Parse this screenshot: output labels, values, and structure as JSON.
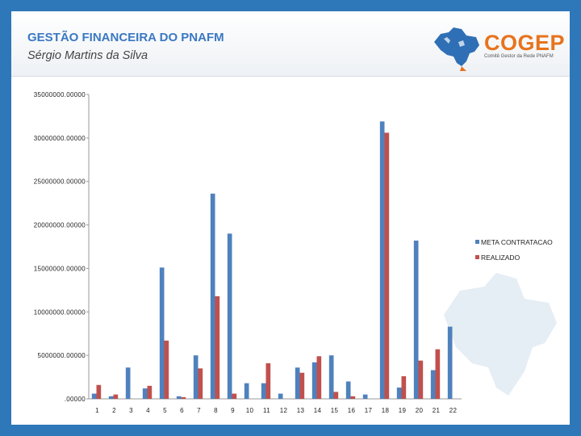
{
  "header": {
    "title": "GESTÃO FINANCEIRA DO PNAFM",
    "subtitle": "Sérgio Martins da Silva",
    "logo_text": "COGEP",
    "logo_subtext": "Comitê Gestor da Rede PNAFM"
  },
  "colors": {
    "frame": "#2e77b8",
    "meta": "#4f81bd",
    "realizado": "#c0504d",
    "logo_orange": "#e8731c",
    "logo_blue": "#2f6fb5"
  },
  "chart_data": {
    "type": "bar",
    "categories": [
      "1",
      "2",
      "3",
      "4",
      "5",
      "6",
      "7",
      "8",
      "9",
      "10",
      "11",
      "12",
      "13",
      "14",
      "15",
      "16",
      "17",
      "18",
      "19",
      "20",
      "21",
      "22"
    ],
    "series": [
      {
        "name": "META CONTRATACAO",
        "values": [
          600000,
          300000,
          3600000,
          1200000,
          15100000,
          300000,
          5000000,
          23600000,
          19000000,
          1800000,
          1800000,
          600000,
          3600000,
          4200000,
          5000000,
          2000000,
          500000,
          31900000,
          1300000,
          18200000,
          3300000,
          8300000
        ]
      },
      {
        "name": "REALIZADO",
        "values": [
          1600000,
          500000,
          0,
          1500000,
          6700000,
          200000,
          3500000,
          11800000,
          600000,
          0,
          4100000,
          0,
          3000000,
          4900000,
          800000,
          300000,
          0,
          30600000,
          2600000,
          4400000,
          5700000,
          0
        ]
      }
    ],
    "y_ticks": [
      "35000000.00000",
      "30000000.00000",
      "25000000.00000",
      "20000000.00000",
      "15000000.00000",
      "10000000.00000",
      "5000000.00000",
      ".00000"
    ],
    "ylim": [
      0,
      35000000
    ],
    "xlabel": "",
    "ylabel": "",
    "grid": false,
    "legend_position": "right"
  }
}
